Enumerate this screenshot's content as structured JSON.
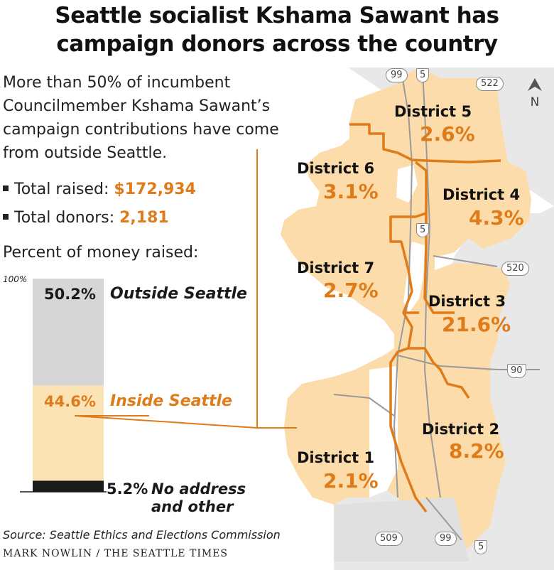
{
  "title": {
    "line1": "Seattle socialist Kshama Sawant has",
    "line2": "campaign donors across the country"
  },
  "intro": {
    "line1": "More than 50% of incumbent",
    "line2": "Councilmember Kshama Sawant’s",
    "line3": "campaign contributions have come",
    "line4": "from outside Seattle."
  },
  "stats": {
    "raised_label": "Total raised:",
    "raised_value": "$172,934",
    "donors_label": "Total donors:",
    "donors_value": "2,181"
  },
  "colors": {
    "orange": "#e07b1a",
    "map_fill": "#fcdcaa",
    "outside_gray": "#d6d6d6",
    "inside_peach": "#fce3b6",
    "no_address_black": "#1a1a1a"
  },
  "chart_data": [
    {
      "type": "bar",
      "title": "Percent of money raised:",
      "axis_top_label": "100%",
      "ylim": [
        0,
        100
      ],
      "segments": [
        {
          "name": "Outside Seattle",
          "value": 50.2,
          "label": "50.2%"
        },
        {
          "name": "Inside Seattle",
          "value": 44.6,
          "label": "44.6%"
        },
        {
          "name": "No address and other",
          "value": 5.2,
          "label": "5.2%",
          "caption_line1": "No address",
          "caption_line2": "and other"
        }
      ]
    },
    {
      "type": "map",
      "districts": [
        {
          "name": "District 5",
          "value": 2.6,
          "label": "2.6%"
        },
        {
          "name": "District 6",
          "value": 3.1,
          "label": "3.1%"
        },
        {
          "name": "District 4",
          "value": 4.3,
          "label": "4.3%"
        },
        {
          "name": "District 7",
          "value": 2.7,
          "label": "2.7%"
        },
        {
          "name": "District 3",
          "value": 21.6,
          "label": "21.6%"
        },
        {
          "name": "District 2",
          "value": 8.2,
          "label": "8.2%"
        },
        {
          "name": "District 1",
          "value": 2.1,
          "label": "2.1%"
        }
      ]
    }
  ],
  "highways": {
    "h99_top": "99",
    "h5_top": "5",
    "h522": "522",
    "h5_mid": "5",
    "h520": "520",
    "h90": "90",
    "h509": "509",
    "h99_bottom": "99",
    "h5_bottom": "5"
  },
  "compass": {
    "label": "N"
  },
  "source": "Source: Seattle Ethics and Elections Commission",
  "credit": "MARK NOWLIN / THE SEATTLE TIMES"
}
